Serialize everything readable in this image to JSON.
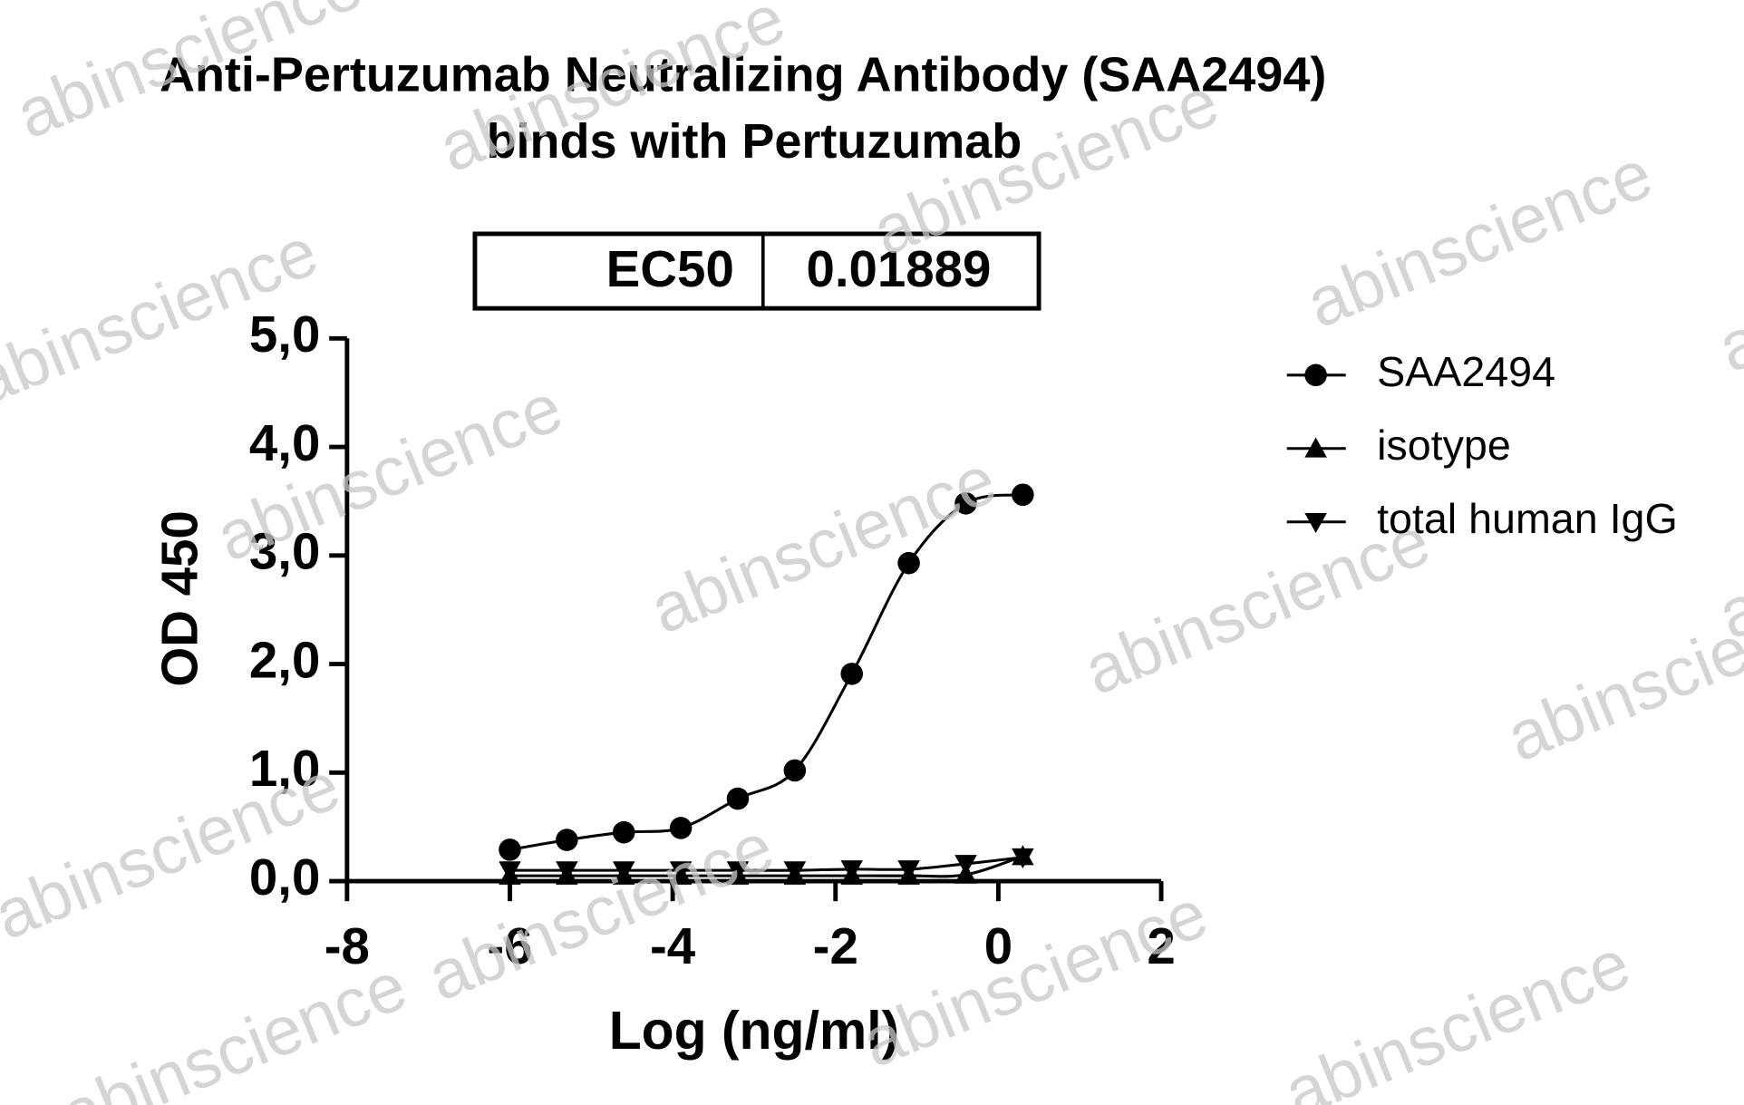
{
  "chart_data": {
    "type": "line",
    "title": [
      "Anti-Pertuzumab Neutralizing Antibody (SAA2494)",
      "binds with Pertuzumab"
    ],
    "table": [
      [
        "EC50",
        "0.01889"
      ]
    ],
    "x_label": "Log (ng/ml)",
    "y_label": "OD 450",
    "x": [
      -6.0,
      -5.3,
      -4.6,
      -3.9,
      -3.2,
      -2.5,
      -1.8,
      -1.1,
      -0.4,
      0.3
    ],
    "series": [
      {
        "name": "SAA2494",
        "color": "#000000",
        "marker": "circle",
        "values": [
          0.29,
          0.38,
          0.45,
          0.49,
          0.76,
          1.02,
          1.91,
          2.93,
          3.48,
          3.56
        ]
      },
      {
        "name": "isotype",
        "color": "#000000",
        "marker": "triangle-up",
        "values": [
          0.05,
          0.05,
          0.05,
          0.05,
          0.05,
          0.05,
          0.05,
          0.05,
          0.06,
          0.23
        ]
      },
      {
        "name": "total human IgG",
        "color": "#000000",
        "marker": "triangle-down",
        "values": [
          0.1,
          0.1,
          0.1,
          0.1,
          0.1,
          0.1,
          0.11,
          0.11,
          0.16,
          0.22
        ]
      }
    ],
    "xlim": [
      -8,
      2
    ],
    "xticks": [
      -8,
      -6,
      -4,
      -2,
      0,
      2
    ],
    "ylim": [
      0,
      5
    ],
    "yticks": [
      {
        "value": 0,
        "label": "0,0"
      },
      {
        "value": 1,
        "label": "1,0"
      },
      {
        "value": 2,
        "label": "2,0"
      },
      {
        "value": 3,
        "label": "3,0"
      },
      {
        "value": 4,
        "label": "4,0"
      },
      {
        "value": 5,
        "label": "5,0"
      }
    ],
    "legend": "right",
    "watermark": "abinscience"
  }
}
